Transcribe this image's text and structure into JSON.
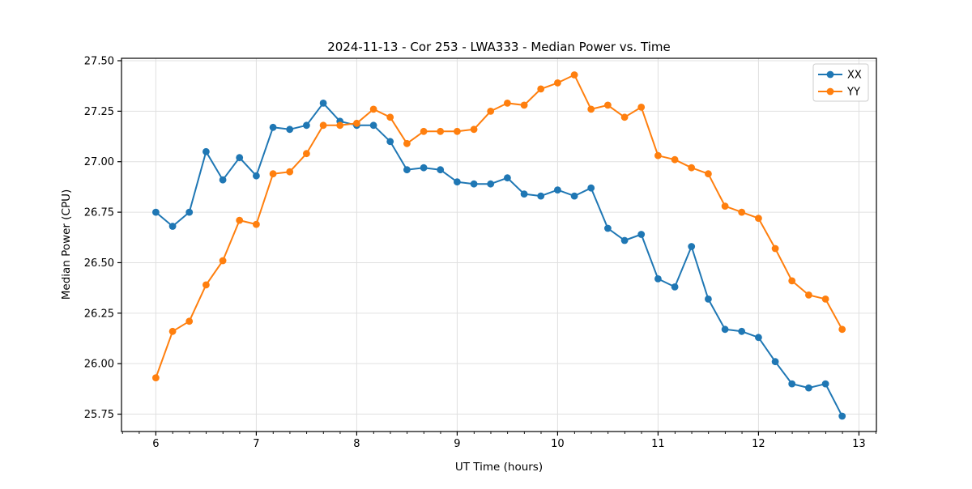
{
  "chart_data": {
    "type": "line",
    "title": "2024-11-13 - Cor 253 - LWA333 - Median Power vs. Time",
    "xlabel": "UT Time (hours)",
    "ylabel": "Median Power (CPU)",
    "xlim": [
      5.658,
      13.174
    ],
    "ylim": [
      25.664,
      27.512
    ],
    "x_ticks": [
      6,
      7,
      8,
      9,
      10,
      11,
      12,
      13
    ],
    "y_ticks": [
      25.75,
      26.0,
      26.25,
      26.5,
      26.75,
      27.0,
      27.25,
      27.5
    ],
    "x_minor_step": 0.1667,
    "grid": true,
    "grid_color": "#e0e0e0",
    "legend_position": "upper right",
    "x": [
      6.0,
      6.167,
      6.333,
      6.5,
      6.667,
      6.833,
      7.0,
      7.167,
      7.333,
      7.5,
      7.667,
      7.833,
      8.0,
      8.167,
      8.333,
      8.5,
      8.667,
      8.833,
      9.0,
      9.167,
      9.333,
      9.5,
      9.667,
      9.833,
      10.0,
      10.167,
      10.333,
      10.5,
      10.667,
      10.833,
      11.0,
      11.167,
      11.333,
      11.5,
      11.667,
      11.833,
      12.0,
      12.167,
      12.333,
      12.5,
      12.667,
      12.833
    ],
    "series": [
      {
        "name": "XX",
        "color": "#1f77b4",
        "values": [
          26.75,
          26.68,
          26.75,
          27.05,
          26.91,
          27.02,
          26.93,
          27.17,
          27.16,
          27.18,
          27.29,
          27.2,
          27.18,
          27.18,
          27.1,
          26.96,
          26.97,
          26.96,
          26.9,
          26.89,
          26.89,
          26.92,
          26.84,
          26.83,
          26.86,
          26.83,
          26.87,
          26.67,
          26.61,
          26.64,
          26.42,
          26.38,
          26.58,
          26.32,
          26.17,
          26.16,
          26.13,
          26.01,
          25.9,
          25.88,
          25.9,
          25.74
        ]
      },
      {
        "name": "YY",
        "color": "#ff7f0e",
        "values": [
          25.93,
          26.16,
          26.21,
          26.39,
          26.51,
          26.71,
          26.69,
          26.94,
          26.95,
          27.04,
          27.18,
          27.18,
          27.19,
          27.26,
          27.22,
          27.09,
          27.15,
          27.15,
          27.15,
          27.16,
          27.25,
          27.29,
          27.28,
          27.36,
          27.39,
          27.43,
          27.26,
          27.28,
          27.22,
          27.27,
          27.03,
          27.01,
          26.97,
          26.94,
          26.78,
          26.75,
          26.72,
          26.57,
          26.41,
          26.34,
          26.32,
          26.17
        ]
      }
    ]
  }
}
